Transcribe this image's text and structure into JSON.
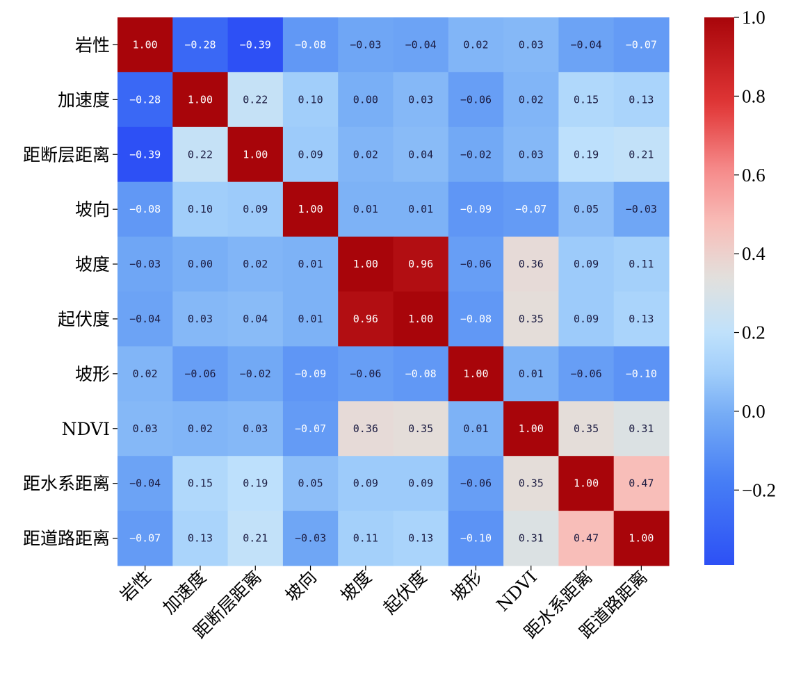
{
  "chart_data": {
    "type": "heatmap",
    "title": "",
    "xlabel": "",
    "ylabel": "",
    "row_labels": [
      "岩性",
      "加速度",
      "距断层距离",
      "坡向",
      "坡度",
      "起伏度",
      "坡形",
      "NDVI",
      "距水系距离",
      "距道路距离"
    ],
    "col_labels": [
      "岩性",
      "加速度",
      "距断层距离",
      "坡向",
      "坡度",
      "起伏度",
      "坡形",
      "NDVI",
      "距水系距离",
      "距道路距离"
    ],
    "values": [
      [
        1.0,
        -0.28,
        -0.39,
        -0.08,
        -0.03,
        -0.04,
        0.02,
        0.03,
        -0.04,
        -0.07
      ],
      [
        -0.28,
        1.0,
        0.22,
        0.1,
        0.0,
        0.03,
        -0.06,
        0.02,
        0.15,
        0.13
      ],
      [
        -0.39,
        0.22,
        1.0,
        0.09,
        0.02,
        0.04,
        -0.02,
        0.03,
        0.19,
        0.21
      ],
      [
        -0.08,
        0.1,
        0.09,
        1.0,
        0.01,
        0.01,
        -0.09,
        -0.07,
        0.05,
        -0.03
      ],
      [
        -0.03,
        0.0,
        0.02,
        0.01,
        1.0,
        0.96,
        -0.06,
        0.36,
        0.09,
        0.11
      ],
      [
        -0.04,
        0.03,
        0.04,
        0.01,
        0.96,
        1.0,
        -0.08,
        0.35,
        0.09,
        0.13
      ],
      [
        0.02,
        -0.06,
        -0.02,
        -0.09,
        -0.06,
        -0.08,
        1.0,
        0.01,
        -0.06,
        -0.1
      ],
      [
        0.03,
        0.02,
        0.03,
        -0.07,
        0.36,
        0.35,
        0.01,
        1.0,
        0.35,
        0.31
      ],
      [
        -0.04,
        0.15,
        0.19,
        0.05,
        0.09,
        0.09,
        -0.06,
        0.35,
        1.0,
        0.47
      ],
      [
        -0.07,
        0.13,
        0.21,
        -0.03,
        0.11,
        0.13,
        -0.1,
        0.31,
        0.47,
        1.0
      ]
    ],
    "annotation_format": "2 decimals",
    "colormap": "coolwarm",
    "vmin": -0.39,
    "vmax": 1.0,
    "colorbar": {
      "ticks": [
        1.0,
        0.8,
        0.6,
        0.4,
        0.2,
        0.0,
        -0.2
      ],
      "tick_labels": [
        "1.0",
        "0.8",
        "0.6",
        "0.4",
        "0.2",
        "0.0",
        "−0.2"
      ],
      "placement": "right"
    },
    "colors": {
      "cool_end": "#3b4cc0",
      "mid": "#dddddd",
      "warm_end": "#b40426",
      "label_on_dark": "#ffffff",
      "label_on_light": "#1a1a40"
    }
  }
}
